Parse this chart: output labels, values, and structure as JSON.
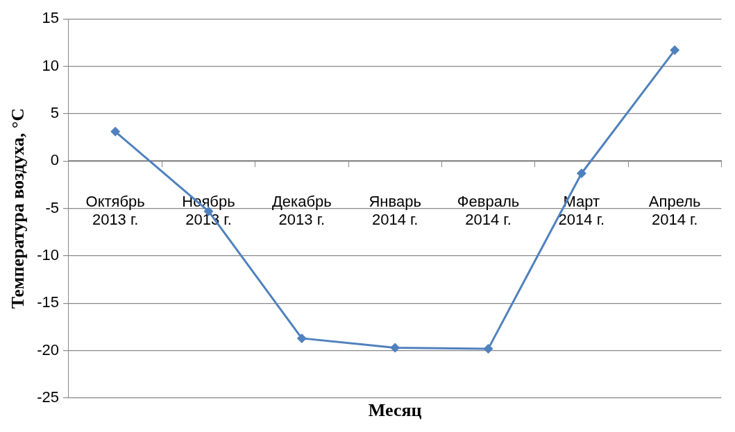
{
  "chart_data": {
    "type": "line",
    "xlabel": "Месяц",
    "ylabel": "Температура воздуха, °C",
    "categories": [
      "Октябрь 2013 г.",
      "Ноябрь 2013 г.",
      "Декабрь 2013 г.",
      "Январь 2014 г.",
      "Февраль 2014 г.",
      "Март 2014 г.",
      "Апрель 2014 г."
    ],
    "series": [
      {
        "color": "#4f81bd",
        "values": [
          3.1,
          -5.3,
          -18.7,
          -19.7,
          -19.8,
          -1.3,
          11.7
        ]
      }
    ],
    "ylim": [
      -25,
      15
    ],
    "yticks": [
      -25,
      -20,
      -15,
      -10,
      -5,
      0,
      5,
      10,
      15
    ],
    "grid": "y",
    "legend": false,
    "marker": "diamond",
    "line_style": "solid"
  }
}
